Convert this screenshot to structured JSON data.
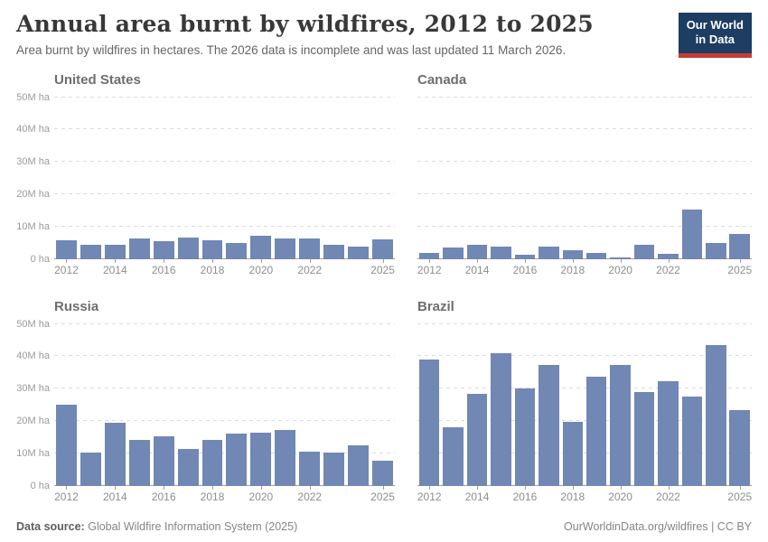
{
  "header": {
    "title": "Annual area burnt by wildfires, 2012 to 2025",
    "subtitle": "Area burnt by wildfires in hectares. The 2026 data is incomplete and was last updated 11 March 2026.",
    "logo": {
      "line1": "Our World",
      "line2": "in Data"
    }
  },
  "colors": {
    "bar": "#7187b4",
    "logo_background": "#1d3d63",
    "logo_stripe": "#c53c33",
    "gridline": "#dcdcdc",
    "axis_line": "#a0a0a0",
    "title_text": "#383838",
    "chart_title_text": "#6e6e6e"
  },
  "axis": {
    "y_tick_labels": [
      "0 ha",
      "10M ha",
      "20M ha",
      "30M ha",
      "40M ha",
      "50M ha"
    ],
    "x_tick_labels": [
      "2012",
      "2014",
      "2016",
      "2018",
      "2020",
      "2022",
      "2025"
    ],
    "ylim_million_ha": [
      0,
      50
    ],
    "grid": "dashed horizontal",
    "y_labels_on_left_column_only": true
  },
  "chart_data": [
    {
      "type": "bar",
      "title": "United States",
      "unit": "million hectares",
      "ylim": [
        0,
        50
      ],
      "categories": [
        "2012",
        "2013",
        "2014",
        "2015",
        "2016",
        "2017",
        "2018",
        "2019",
        "2020",
        "2021",
        "2022",
        "2023",
        "2024",
        "2025"
      ],
      "values": [
        5.6,
        4.4,
        4.4,
        6.3,
        5.5,
        6.6,
        5.6,
        4.9,
        7.0,
        6.4,
        6.2,
        4.3,
        3.8,
        5.9
      ]
    },
    {
      "type": "bar",
      "title": "Canada",
      "unit": "million hectares",
      "ylim": [
        0,
        50
      ],
      "categories": [
        "2012",
        "2013",
        "2014",
        "2015",
        "2016",
        "2017",
        "2018",
        "2019",
        "2020",
        "2021",
        "2022",
        "2023",
        "2024",
        "2025"
      ],
      "values": [
        1.7,
        3.5,
        4.2,
        3.7,
        1.3,
        3.8,
        2.6,
        1.8,
        0.4,
        4.3,
        1.5,
        15.2,
        5.0,
        7.6
      ]
    },
    {
      "type": "bar",
      "title": "Russia",
      "unit": "million hectares",
      "ylim": [
        0,
        50
      ],
      "categories": [
        "2012",
        "2013",
        "2014",
        "2015",
        "2016",
        "2017",
        "2018",
        "2019",
        "2020",
        "2021",
        "2022",
        "2023",
        "2024",
        "2025"
      ],
      "values": [
        25.1,
        10.2,
        19.5,
        14.0,
        15.2,
        11.3,
        14.0,
        16.1,
        16.3,
        17.2,
        10.6,
        10.2,
        12.3,
        7.8
      ]
    },
    {
      "type": "bar",
      "title": "Brazil",
      "unit": "million hectares",
      "ylim": [
        0,
        50
      ],
      "categories": [
        "2012",
        "2013",
        "2014",
        "2015",
        "2016",
        "2017",
        "2018",
        "2019",
        "2020",
        "2021",
        "2022",
        "2023",
        "2024",
        "2025"
      ],
      "values": [
        39.0,
        18.0,
        28.3,
        41.0,
        30.0,
        37.4,
        19.8,
        33.6,
        37.2,
        29.0,
        32.3,
        27.4,
        43.5,
        23.3
      ]
    }
  ],
  "footer": {
    "datasource_label": "Data source:",
    "datasource_value": "Global Wildfire Information System (2025)",
    "link": "OurWorldinData.org/wildfires",
    "separator": "|",
    "license": "CC BY"
  }
}
